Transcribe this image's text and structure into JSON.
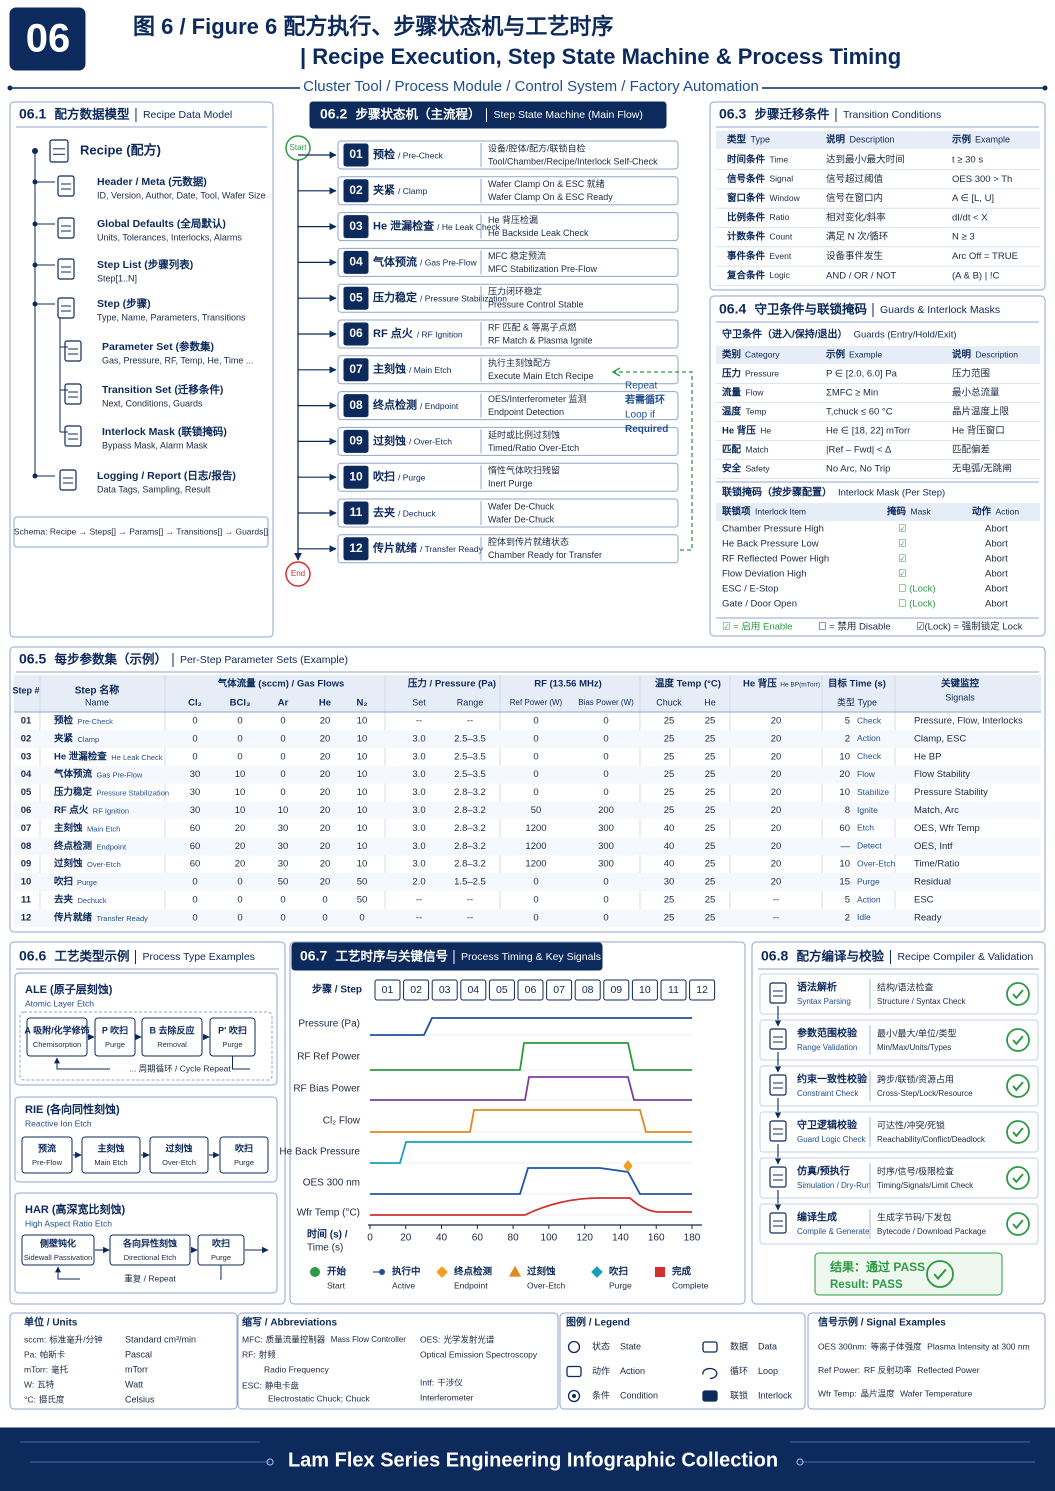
{
  "header": {
    "badge": "06",
    "title_cn": "图 6 / Figure 6  配方执行、步骤状态机与工艺时序",
    "title_en": "|  Recipe Execution, Step State Machine & Process Timing",
    "subtitle": "Cluster Tool / Process Module / Control System / Factory Automation"
  },
  "data_model": {
    "num": "06.1",
    "title": "配方数据模型",
    "title_en": "Recipe Data Model",
    "root": "Recipe (配方)",
    "items": [
      {
        "title": "Header / Meta (元数据)",
        "desc": "ID, Version, Author, Date, Tool, Wafer Size"
      },
      {
        "title": "Global Defaults (全局默认)",
        "desc": "Units, Tolerances, Interlocks, Alarms"
      },
      {
        "title": "Step List (步骤列表)",
        "desc": "Step[1..N]"
      },
      {
        "title": "Step (步骤)",
        "desc": "Type, Name, Parameters, Transitions"
      },
      {
        "title": "Parameter Set (参数集)",
        "desc": "Gas, Pressure, RF, Temp, He, Time ..."
      },
      {
        "title": "Transition Set (迁移条件)",
        "desc": "Next, Conditions, Guards"
      },
      {
        "title": "Interlock Mask (联锁掩码)",
        "desc": "Bypass Mask, Alarm Mask"
      },
      {
        "title": "Logging / Report (日志/报告)",
        "desc": "Data Tags, Sampling, Result"
      }
    ],
    "schema": "Schema: Recipe → Steps[] → Params[] → Transitions[] → Guards[]"
  },
  "state_machine": {
    "num": "06.2",
    "title": "步骤状态机（主流程）",
    "title_en": "Step State Machine (Main Flow)",
    "start": "Start",
    "end": "End",
    "steps": [
      {
        "num": "01",
        "cn": "预检",
        "en": "/ Pre-Check",
        "desc_cn": "设备/腔体/配方/联锁自检",
        "desc_en": "Tool/Chamber/Recipe/Interlock Self-Check"
      },
      {
        "num": "02",
        "cn": "夹紧",
        "en": "/ Clamp",
        "desc_cn": "Wafer Clamp On & ESC 就绪",
        "desc_en": "Wafer Clamp On & ESC Ready"
      },
      {
        "num": "03",
        "cn": "He 泄漏检查",
        "en": "/ He Leak Check",
        "desc_cn": "He 背压检漏",
        "desc_en": "He Backside Leak Check"
      },
      {
        "num": "04",
        "cn": "气体预流",
        "en": "/ Gas Pre-Flow",
        "desc_cn": "MFC 稳定预流",
        "desc_en": "MFC Stabilization Pre-Flow"
      },
      {
        "num": "05",
        "cn": "压力稳定",
        "en": "/ Pressure Stabilization",
        "desc_cn": "压力闭环稳定",
        "desc_en": "Pressure Control Stable"
      },
      {
        "num": "06",
        "cn": "RF 点火",
        "en": "/ RF Ignition",
        "desc_cn": "RF 匹配 & 等离子点燃",
        "desc_en": "RF Match & Plasma Ignite"
      },
      {
        "num": "07",
        "cn": "主刻蚀",
        "en": "/ Main Etch",
        "desc_cn": "执行主刻蚀配方",
        "desc_en": "Execute Main Etch Recipe"
      },
      {
        "num": "08",
        "cn": "终点检测",
        "en": "/ Endpoint",
        "desc_cn": "OES/Interferometer 监测",
        "desc_en": "Endpoint Detection"
      },
      {
        "num": "09",
        "cn": "过刻蚀",
        "en": "/ Over-Etch",
        "desc_cn": "延时或比例过刻蚀",
        "desc_en": "Timed/Ratio Over-Etch"
      },
      {
        "num": "10",
        "cn": "吹扫",
        "en": "/ Purge",
        "desc_cn": "惰性气体吹扫残留",
        "desc_en": "Inert Purge"
      },
      {
        "num": "11",
        "cn": "去夹",
        "en": "/ Dechuck",
        "desc_cn": "Wafer De-Chuck",
        "desc_en": "Wafer De-Chuck"
      },
      {
        "num": "12",
        "cn": "传片就绪",
        "en": "/ Transfer Ready",
        "desc_cn": "腔体到传片就绪状态",
        "desc_en": "Chamber Ready for Transfer"
      }
    ],
    "loop": [
      "Repeat",
      "若需循环",
      "Loop if",
      "Required"
    ]
  },
  "transitions": {
    "num": "06.3",
    "title": "步骤迁移条件",
    "title_en": "Transition Conditions",
    "columns": [
      [
        "类型",
        "Type"
      ],
      [
        "说明",
        "Description"
      ],
      [
        "示例",
        "Example"
      ]
    ],
    "rows": [
      [
        "时间条件",
        "Time",
        "达到最小/最大时间",
        "t ≥ 30 s"
      ],
      [
        "信号条件",
        "Signal",
        "信号超过阈值",
        "OES 300 > Th"
      ],
      [
        "窗口条件",
        "Window",
        "信号在窗口内",
        "A ∈ [L, U]"
      ],
      [
        "比例条件",
        "Ratio",
        "相对变化/斜率",
        "dI/dt < X"
      ],
      [
        "计数条件",
        "Count",
        "满足 N 次/循环",
        "N ≥ 3"
      ],
      [
        "事件条件",
        "Event",
        "设备事件发生",
        "Arc Off = TRUE"
      ],
      [
        "复合条件",
        "Logic",
        "AND / OR / NOT",
        "(A & B) | !C"
      ]
    ]
  },
  "guards": {
    "num": "06.4",
    "title": "守卫条件与联锁掩码",
    "title_en": "Guards & Interlock Masks",
    "guard_title": "守卫条件（进入/保持/退出）",
    "guard_title_en": "Guards (Entry/Hold/Exit)",
    "guard_columns": [
      [
        "类别",
        "Category"
      ],
      [
        "示例",
        "Example"
      ],
      [
        "说明",
        "Description"
      ]
    ],
    "guard_rows": [
      [
        "压力",
        "Pressure",
        "P ∈ [2.0, 6.0] Pa",
        "压力范围"
      ],
      [
        "流量",
        "Flow",
        "ΣMFC ≥ Min",
        "最小总流量"
      ],
      [
        "温度",
        "Temp",
        "T,chuck ≤ 60 °C",
        "晶片温度上限"
      ],
      [
        "He 背压",
        "He",
        "He ∈ [18, 22] mTorr",
        "He 背压窗口"
      ],
      [
        "匹配",
        "Match",
        "|Ref – Fwd| < Δ",
        "匹配偏差"
      ],
      [
        "安全",
        "Safety",
        "No Arc, No Trip",
        "无电弧/无跳闸"
      ]
    ],
    "mask_title": "联锁掩码（按步骤配置）",
    "mask_title_en": "Interlock Mask (Per Step)",
    "mask_columns": [
      [
        "联锁项",
        "Interlock Item"
      ],
      [
        "掩码",
        "Mask"
      ],
      [
        "动作",
        "Action"
      ]
    ],
    "mask_rows": [
      [
        "Chamber Pressure High",
        "☑",
        "Abort"
      ],
      [
        "He Back Pressure Low",
        "☑",
        "Abort"
      ],
      [
        "RF Reflected Power High",
        "☑",
        "Abort"
      ],
      [
        "Flow Deviation High",
        "☑",
        "Abort"
      ],
      [
        "ESC / E-Stop",
        "☐ (Lock)",
        "Abort"
      ],
      [
        "Gate / Door Open",
        "☐ (Lock)",
        "Abort"
      ]
    ],
    "legend": [
      "☑ = 启用 Enable",
      "☐ = 禁用 Disable",
      "☑(Lock) = 强制锁定 Lock"
    ]
  },
  "param_sets": {
    "num": "06.5",
    "title": "每步参数集（示例）",
    "title_en": "Per-Step Parameter Sets (Example)",
    "header": {
      "step": "Step #",
      "name_cn": "Step 名称",
      "name_en": "Name",
      "gas": "气体流量 (sccm) / Gas Flows",
      "gas_cols": [
        "Cl₂",
        "BCl₃",
        "Ar",
        "He",
        "N₂"
      ],
      "pressure": "压力 / Pressure (Pa)",
      "pressure_cols": [
        "Set",
        "Range"
      ],
      "rf": "RF (13.56 MHz)",
      "rf_cols": [
        "Ref Power (W)",
        "Bias Power (W)"
      ],
      "temp": "温度  Temp (°C)",
      "temp_cols": [
        "Chuck",
        "He"
      ],
      "he_bp": "He 背压",
      "he_bp_en": "He BP(mTorr)",
      "target": "目标 Time (s)",
      "type": "类型 Type",
      "signals_cn": "关键监控",
      "signals_en": "Signals"
    },
    "rows": [
      [
        "01",
        "预检",
        "Pre-Check",
        "0",
        "0",
        "0",
        "20",
        "10",
        "--",
        "--",
        "0",
        "0",
        "25",
        "25",
        "20",
        "5",
        "Check",
        "Pressure, Flow, Interlocks"
      ],
      [
        "02",
        "夹紧",
        "Clamp",
        "0",
        "0",
        "0",
        "20",
        "10",
        "3.0",
        "2.5–3.5",
        "0",
        "0",
        "25",
        "25",
        "20",
        "2",
        "Action",
        "Clamp, ESC"
      ],
      [
        "03",
        "He 泄漏检查",
        "He Leak Check",
        "0",
        "0",
        "0",
        "20",
        "10",
        "3.0",
        "2.5–3.5",
        "0",
        "0",
        "25",
        "25",
        "20",
        "10",
        "Check",
        "He BP"
      ],
      [
        "04",
        "气体预流",
        "Gas Pre-Flow",
        "30",
        "10",
        "0",
        "20",
        "10",
        "3.0",
        "2.5–3.5",
        "0",
        "0",
        "25",
        "25",
        "20",
        "20",
        "Flow",
        "Flow Stability"
      ],
      [
        "05",
        "压力稳定",
        "Pressure Stabilization",
        "30",
        "10",
        "0",
        "20",
        "10",
        "3.0",
        "2.8–3.2",
        "0",
        "0",
        "25",
        "25",
        "20",
        "10",
        "Stabilize",
        "Pressure Stability"
      ],
      [
        "06",
        "RF 点火",
        "RF Ignition",
        "30",
        "10",
        "10",
        "20",
        "10",
        "3.0",
        "2.8–3.2",
        "50",
        "200",
        "25",
        "25",
        "20",
        "8",
        "Ignite",
        "Match, Arc"
      ],
      [
        "07",
        "主刻蚀",
        "Main Etch",
        "60",
        "20",
        "30",
        "20",
        "10",
        "3.0",
        "2.8–3.2",
        "1200",
        "300",
        "40",
        "25",
        "20",
        "60",
        "Etch",
        "OES, Wfr Temp"
      ],
      [
        "08",
        "终点检测",
        "Endpoint",
        "60",
        "20",
        "30",
        "20",
        "10",
        "3.0",
        "2.8–3.2",
        "1200",
        "300",
        "40",
        "25",
        "20",
        "—",
        "Detect",
        "OES, Intf"
      ],
      [
        "09",
        "过刻蚀",
        "Over-Etch",
        "60",
        "20",
        "30",
        "20",
        "10",
        "3.0",
        "2.8–3.2",
        "1200",
        "300",
        "40",
        "25",
        "20",
        "10",
        "Over-Etch",
        "Time/Ratio"
      ],
      [
        "10",
        "吹扫",
        "Purge",
        "0",
        "0",
        "50",
        "20",
        "50",
        "2.0",
        "1.5–2.5",
        "0",
        "0",
        "30",
        "25",
        "20",
        "15",
        "Purge",
        "Residual"
      ],
      [
        "11",
        "去夹",
        "Dechuck",
        "0",
        "0",
        "0",
        "0",
        "50",
        "--",
        "--",
        "0",
        "0",
        "25",
        "25",
        "--",
        "5",
        "Action",
        "ESC"
      ],
      [
        "12",
        "传片就绪",
        "Transfer Ready",
        "0",
        "0",
        "0",
        "0",
        "0",
        "--",
        "--",
        "0",
        "0",
        "25",
        "25",
        "--",
        "2",
        "Idle",
        "Ready"
      ]
    ]
  },
  "process_types": {
    "num": "06.6",
    "title": "工艺类型示例",
    "title_en": "Process Type Examples",
    "types": [
      {
        "name": "ALE (原子层刻蚀)",
        "sub": "Atomic Layer Etch",
        "steps": [
          [
            "A 吸附/化学修饰",
            "Chemisorption"
          ],
          [
            "P 吹扫",
            "Purge"
          ],
          [
            "B 去除反应",
            "Removal"
          ],
          [
            "P' 吹扫",
            "Purge"
          ]
        ],
        "repeat": "... 周期循环 / Cycle Repeat"
      },
      {
        "name": "RIE (各向同性刻蚀)",
        "sub": "Reactive Ion Etch",
        "steps": [
          [
            "预流",
            "Pre-Flow"
          ],
          [
            "主刻蚀",
            "Main Etch"
          ],
          [
            "过刻蚀",
            "Over-Etch"
          ],
          [
            "吹扫",
            "Purge"
          ]
        ]
      },
      {
        "name": "HAR (高深宽比刻蚀)",
        "sub": "High Aspect Ratio Etch",
        "steps": [
          [
            "侧壁钝化",
            "Sidewall Passivation"
          ],
          [
            "各向异性刻蚀",
            "Directional Etch"
          ],
          [
            "吹扫",
            "Purge"
          ]
        ],
        "repeat": "重复 / Repeat"
      }
    ]
  },
  "timing": {
    "num": "06.7",
    "title": "工艺时序与关键信号",
    "title_en": "Process Timing & Key Signals",
    "step_label": "步骤 / Step",
    "signals": [
      "Pressure (Pa)",
      "RF Ref Power",
      "RF Bias Power",
      "Cl₂ Flow",
      "He Back Pressure",
      "OES 300 nm",
      "Wfr Temp (°C)"
    ],
    "x_label": [
      "时间 (s) /",
      "Time (s)"
    ],
    "xlim": [
      0,
      180
    ],
    "xticks": [
      0,
      20,
      40,
      60,
      80,
      100,
      120,
      140,
      160,
      180
    ],
    "legend": [
      [
        "开始",
        "Start"
      ],
      [
        "执行中",
        "Active"
      ],
      [
        "终点检测",
        "Endpoint"
      ],
      [
        "过刻蚀",
        "Over-Etch"
      ],
      [
        "吹扫",
        "Purge"
      ],
      [
        "完成",
        "Complete"
      ]
    ]
  },
  "compiler": {
    "num": "06.8",
    "title": "配方编译与校验",
    "title_en": "Recipe Compiler & Validation",
    "items": [
      [
        "语法解析",
        "Syntax Parsing",
        "结构/语法检查",
        "Structure / Syntax Check"
      ],
      [
        "参数范围校验",
        "Range Validation",
        "最小/最大/单位/类型",
        "Min/Max/Units/Types"
      ],
      [
        "约束一致性校验",
        "Constraint Check",
        "跨步/联锁/资源占用",
        "Cross-Step/Lock/Resource"
      ],
      [
        "守卫逻辑校验",
        "Guard Logic Check",
        "可达性/冲突/死锁",
        "Reachability/Conflict/Deadlock"
      ],
      [
        "仿真/预执行",
        "Simulation / Dry-Run",
        "时序/信号/极限检查",
        "Timing/Signals/Limit Check"
      ],
      [
        "编译生成",
        "Compile & Generate",
        "生成字节码/下发包",
        "Bytecode / Download Package"
      ]
    ],
    "result_cn": "结果：通过 PASS",
    "result_en": "Result: PASS"
  },
  "footer": {
    "units": {
      "title": "单位 / Units",
      "rows": [
        [
          "sccm:",
          "标准毫升/分钟",
          "Standard cm³/min"
        ],
        [
          "Pa:",
          "帕斯卡",
          "Pascal"
        ],
        [
          "mTorr:",
          "毫托",
          "mTorr"
        ],
        [
          "W:",
          "瓦特",
          "Watt"
        ],
        [
          "°C:",
          "摄氏度",
          "Celsius"
        ]
      ]
    },
    "abbreviations": {
      "title": "缩写 / Abbreviations",
      "rows": [
        [
          "MFC:",
          "质量流量控制器",
          "Mass Flow Controller"
        ],
        [
          "RF:",
          "射频",
          "Radio Frequency"
        ],
        [
          "ESC:",
          "静电卡盘",
          "Electrostatic Chuck; Chuck"
        ],
        [
          "OES:",
          "光学发射光谱",
          "Optical Emission Spectroscopy"
        ],
        [
          "Intf:",
          "干涉仪",
          "Interferometer"
        ]
      ]
    },
    "legend": {
      "title": "图例 / Legend",
      "items": [
        [
          "状态",
          "State"
        ],
        [
          "动作",
          "Action"
        ],
        [
          "条件",
          "Condition"
        ],
        [
          "数据",
          "Data"
        ],
        [
          "循环",
          "Loop"
        ],
        [
          "联锁",
          "Interlock"
        ]
      ]
    },
    "signals": {
      "title": "信号示例 / Signal Examples",
      "rows": [
        [
          "OES 300nm:",
          "等离子体强度",
          "Plasma Intensity at 300 nm"
        ],
        [
          "Ref Power:",
          "RF 反射功率",
          "Reflected Power"
        ],
        [
          "Wfr Temp:",
          "晶片温度",
          "Wafer Temperature"
        ]
      ]
    },
    "banner": "Lam Flex Series Engineering Infographic Collection"
  }
}
